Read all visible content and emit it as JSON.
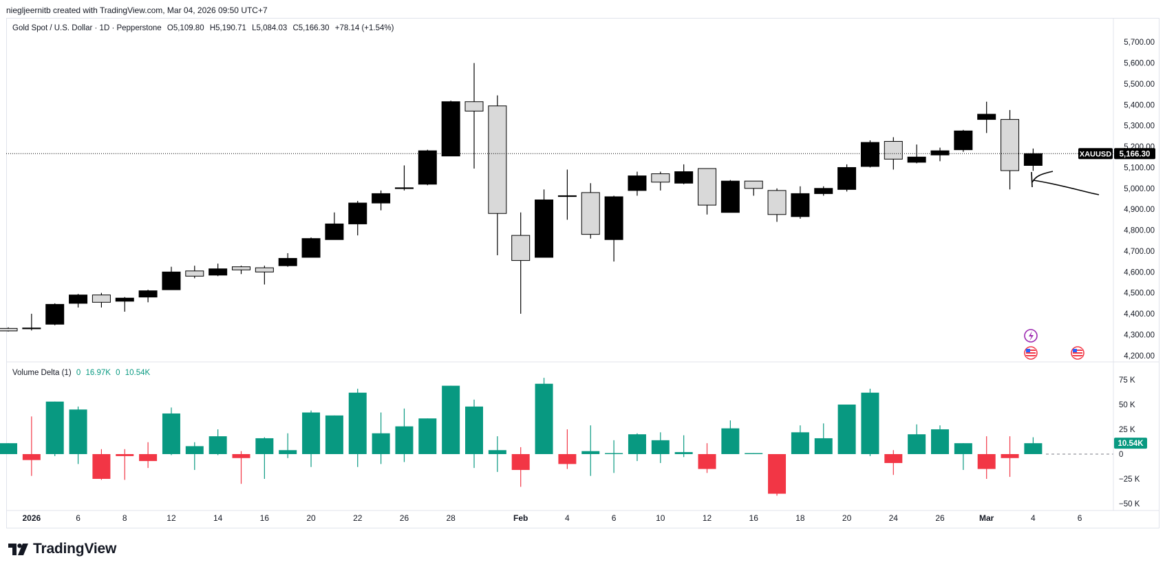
{
  "header": {
    "text": "nieglj​eernitb created with TradingView.com, Mar 04, 2026 09:50 UTC+7"
  },
  "legend": {
    "symbol_line": "Gold Spot / U.S. Dollar · 1D · Pepperstone",
    "open": "O5,109.80",
    "high": "H5,190.71",
    "low": "L5,084.03",
    "close": "C5,166.30",
    "change": "+78.14 (+1.54%)"
  },
  "indicator": {
    "name": "Volume Delta (1)",
    "v1": "0",
    "v2": "16.97K",
    "v3": "0",
    "v4": "10.54K"
  },
  "brand": {
    "name": "TradingView"
  },
  "colors": {
    "up": "#089981",
    "down": "#f23645",
    "candle_black": "#000000",
    "candle_white": "#d9d9d9"
  },
  "chart_data": [
    {
      "type": "candlestick",
      "title": "Gold Spot / U.S. Dollar · 1D · Pepperstone",
      "symbol": "XAUUSD",
      "last_price_label": "5,166.30",
      "last_price": 5166.3,
      "ylim": [
        4140,
        5760
      ],
      "y_ticks": [
        4200,
        4300,
        4400,
        4500,
        4600,
        4700,
        4800,
        4900,
        5000,
        5100,
        5200,
        5300,
        5400,
        5500,
        5600,
        5700
      ],
      "y_tick_labels": [
        "4,200.00",
        "4,300.00",
        "4,400.00",
        "4,500.00",
        "4,600.00",
        "4,700.00",
        "4,800.00",
        "4,900.00",
        "5,000.00",
        "5,100.00",
        "5,200.00",
        "5,300.00",
        "5,400.00",
        "5,500.00",
        "5,600.00",
        "5,700.00"
      ],
      "x_tick_labels": [
        {
          "label": "2026",
          "index": 1
        },
        {
          "label": "6",
          "index": 3
        },
        {
          "label": "8",
          "index": 5
        },
        {
          "label": "12",
          "index": 7
        },
        {
          "label": "14",
          "index": 9
        },
        {
          "label": "16",
          "index": 11
        },
        {
          "label": "20",
          "index": 13
        },
        {
          "label": "22",
          "index": 15
        },
        {
          "label": "26",
          "index": 17
        },
        {
          "label": "28",
          "index": 19
        },
        {
          "label": "Feb",
          "index": 22
        },
        {
          "label": "4",
          "index": 24
        },
        {
          "label": "6",
          "index": 26
        },
        {
          "label": "10",
          "index": 28
        },
        {
          "label": "12",
          "index": 30
        },
        {
          "label": "16",
          "index": 32
        },
        {
          "label": "18",
          "index": 34
        },
        {
          "label": "20",
          "index": 36
        },
        {
          "label": "24",
          "index": 38
        },
        {
          "label": "26",
          "index": 40
        },
        {
          "label": "Mar",
          "index": 42
        },
        {
          "label": "4",
          "index": 44
        },
        {
          "label": "6",
          "index": 46
        }
      ],
      "candles": [
        {
          "o": 4330,
          "h": 4335,
          "l": 4315,
          "c": 4318
        },
        {
          "o": 4330,
          "h": 4400,
          "l": 4320,
          "c": 4332
        },
        {
          "o": 4350,
          "h": 4450,
          "l": 4345,
          "c": 4445
        },
        {
          "o": 4450,
          "h": 4495,
          "l": 4430,
          "c": 4490
        },
        {
          "o": 4490,
          "h": 4500,
          "l": 4430,
          "c": 4455
        },
        {
          "o": 4460,
          "h": 4480,
          "l": 4410,
          "c": 4475
        },
        {
          "o": 4480,
          "h": 4515,
          "l": 4455,
          "c": 4510
        },
        {
          "o": 4515,
          "h": 4625,
          "l": 4515,
          "c": 4600
        },
        {
          "o": 4605,
          "h": 4630,
          "l": 4570,
          "c": 4580
        },
        {
          "o": 4585,
          "h": 4640,
          "l": 4580,
          "c": 4615
        },
        {
          "o": 4625,
          "h": 4630,
          "l": 4590,
          "c": 4610
        },
        {
          "o": 4620,
          "h": 4630,
          "l": 4540,
          "c": 4600
        },
        {
          "o": 4630,
          "h": 4690,
          "l": 4625,
          "c": 4665
        },
        {
          "o": 4670,
          "h": 4765,
          "l": 4670,
          "c": 4760
        },
        {
          "o": 4755,
          "h": 4885,
          "l": 4755,
          "c": 4830
        },
        {
          "o": 4830,
          "h": 4940,
          "l": 4775,
          "c": 4930
        },
        {
          "o": 4930,
          "h": 4990,
          "l": 4895,
          "c": 4975
        },
        {
          "o": 5000,
          "h": 5110,
          "l": 4990,
          "c": 5003
        },
        {
          "o": 5020,
          "h": 5185,
          "l": 5015,
          "c": 5180
        },
        {
          "o": 5155,
          "h": 5420,
          "l": 5155,
          "c": 5415
        },
        {
          "o": 5415,
          "h": 5600,
          "l": 5095,
          "c": 5370
        },
        {
          "o": 5395,
          "h": 5445,
          "l": 4680,
          "c": 4880
        },
        {
          "o": 4775,
          "h": 4885,
          "l": 4400,
          "c": 4655
        },
        {
          "o": 4670,
          "h": 4995,
          "l": 4670,
          "c": 4945
        },
        {
          "o": 4965,
          "h": 5090,
          "l": 4850,
          "c": 4965
        },
        {
          "o": 4980,
          "h": 5025,
          "l": 4760,
          "c": 4780
        },
        {
          "o": 4755,
          "h": 4965,
          "l": 4650,
          "c": 4960
        },
        {
          "o": 4990,
          "h": 5080,
          "l": 4965,
          "c": 5060
        },
        {
          "o": 5070,
          "h": 5080,
          "l": 4990,
          "c": 5030
        },
        {
          "o": 5025,
          "h": 5115,
          "l": 5020,
          "c": 5080
        },
        {
          "o": 5095,
          "h": 5095,
          "l": 4875,
          "c": 4920
        },
        {
          "o": 4885,
          "h": 5040,
          "l": 4885,
          "c": 5035
        },
        {
          "o": 5035,
          "h": 5035,
          "l": 4965,
          "c": 5000
        },
        {
          "o": 4990,
          "h": 5000,
          "l": 4840,
          "c": 4875
        },
        {
          "o": 4865,
          "h": 5010,
          "l": 4855,
          "c": 4975
        },
        {
          "o": 4975,
          "h": 5010,
          "l": 4965,
          "c": 5000
        },
        {
          "o": 4995,
          "h": 5115,
          "l": 4985,
          "c": 5100
        },
        {
          "o": 5105,
          "h": 5230,
          "l": 5100,
          "c": 5220
        },
        {
          "o": 5225,
          "h": 5245,
          "l": 5090,
          "c": 5140
        },
        {
          "o": 5125,
          "h": 5210,
          "l": 5120,
          "c": 5150
        },
        {
          "o": 5160,
          "h": 5195,
          "l": 5130,
          "c": 5180
        },
        {
          "o": 5185,
          "h": 5280,
          "l": 5175,
          "c": 5275
        },
        {
          "o": 5330,
          "h": 5415,
          "l": 5265,
          "c": 5355
        },
        {
          "o": 5330,
          "h": 5375,
          "l": 4995,
          "c": 5085
        },
        {
          "o": 5109.8,
          "h": 5190.71,
          "l": 5084.03,
          "c": 5166.3
        }
      ]
    },
    {
      "type": "bar",
      "title": "Volume Delta (1)",
      "ylim": [
        -60000,
        82000
      ],
      "y_ticks": [
        -50000,
        -25000,
        0,
        25000,
        50000,
        75000
      ],
      "y_tick_labels": [
        "−50 K",
        "−25 K",
        "0",
        "25 K",
        "50 K",
        "75 K"
      ],
      "last_value_label": "10.54K",
      "bars": [
        {
          "v": 11000,
          "hi": 11000,
          "lo": 0
        },
        {
          "v": -6000,
          "hi": 38000,
          "lo": -22000
        },
        {
          "v": 53000,
          "hi": 53000,
          "lo": -2000
        },
        {
          "v": 45000,
          "hi": 48000,
          "lo": -10000
        },
        {
          "v": -25000,
          "hi": 5000,
          "lo": -26000
        },
        {
          "v": -2000,
          "hi": 5000,
          "lo": -26000
        },
        {
          "v": -7000,
          "hi": 12000,
          "lo": -14000
        },
        {
          "v": 41000,
          "hi": 47000,
          "lo": -1000
        },
        {
          "v": 8000,
          "hi": 12000,
          "lo": -16000
        },
        {
          "v": 18000,
          "hi": 25000,
          "lo": -1000
        },
        {
          "v": -4000,
          "hi": 3000,
          "lo": -30000
        },
        {
          "v": 16000,
          "hi": 17000,
          "lo": -25000
        },
        {
          "v": 4000,
          "hi": 21000,
          "lo": -4000
        },
        {
          "v": 42000,
          "hi": 44000,
          "lo": -13000
        },
        {
          "v": 39000,
          "hi": 39000,
          "lo": 0
        },
        {
          "v": 62000,
          "hi": 66000,
          "lo": -13000
        },
        {
          "v": 21000,
          "hi": 42000,
          "lo": -10000
        },
        {
          "v": 28000,
          "hi": 46000,
          "lo": -8000
        },
        {
          "v": 36000,
          "hi": 36000,
          "lo": 0
        },
        {
          "v": 69000,
          "hi": 69000,
          "lo": 0
        },
        {
          "v": 48000,
          "hi": 55000,
          "lo": -14000
        },
        {
          "v": 4000,
          "hi": 18000,
          "lo": -18000
        },
        {
          "v": -16000,
          "hi": 7000,
          "lo": -33000
        },
        {
          "v": 71000,
          "hi": 77000,
          "lo": 0
        },
        {
          "v": -10000,
          "hi": 25000,
          "lo": -15000
        },
        {
          "v": 3000,
          "hi": 29000,
          "lo": -22000
        },
        {
          "v": 1000,
          "hi": 14000,
          "lo": -19000
        },
        {
          "v": 20000,
          "hi": 21000,
          "lo": -7000
        },
        {
          "v": 14000,
          "hi": 22000,
          "lo": -9000
        },
        {
          "v": 2000,
          "hi": 19000,
          "lo": -3000
        },
        {
          "v": -15000,
          "hi": 11000,
          "lo": -19000
        },
        {
          "v": 26000,
          "hi": 34000,
          "lo": 0
        },
        {
          "v": 1000,
          "hi": 1000,
          "lo": 0
        },
        {
          "v": -40000,
          "hi": 0,
          "lo": -42000
        },
        {
          "v": 22000,
          "hi": 29000,
          "lo": 0
        },
        {
          "v": 16000,
          "hi": 31000,
          "lo": 0
        },
        {
          "v": 50000,
          "hi": 50000,
          "lo": 0
        },
        {
          "v": 62000,
          "hi": 66000,
          "lo": -2000
        },
        {
          "v": -9000,
          "hi": 4000,
          "lo": -21000
        },
        {
          "v": 20000,
          "hi": 30000,
          "lo": 0
        },
        {
          "v": 25000,
          "hi": 29000,
          "lo": 0
        },
        {
          "v": 11000,
          "hi": 11000,
          "lo": -16000
        },
        {
          "v": -15000,
          "hi": 18000,
          "lo": -25000
        },
        {
          "v": -4000,
          "hi": 18000,
          "lo": -23000
        },
        {
          "v": 11000,
          "hi": 17000,
          "lo": 0
        }
      ]
    }
  ]
}
